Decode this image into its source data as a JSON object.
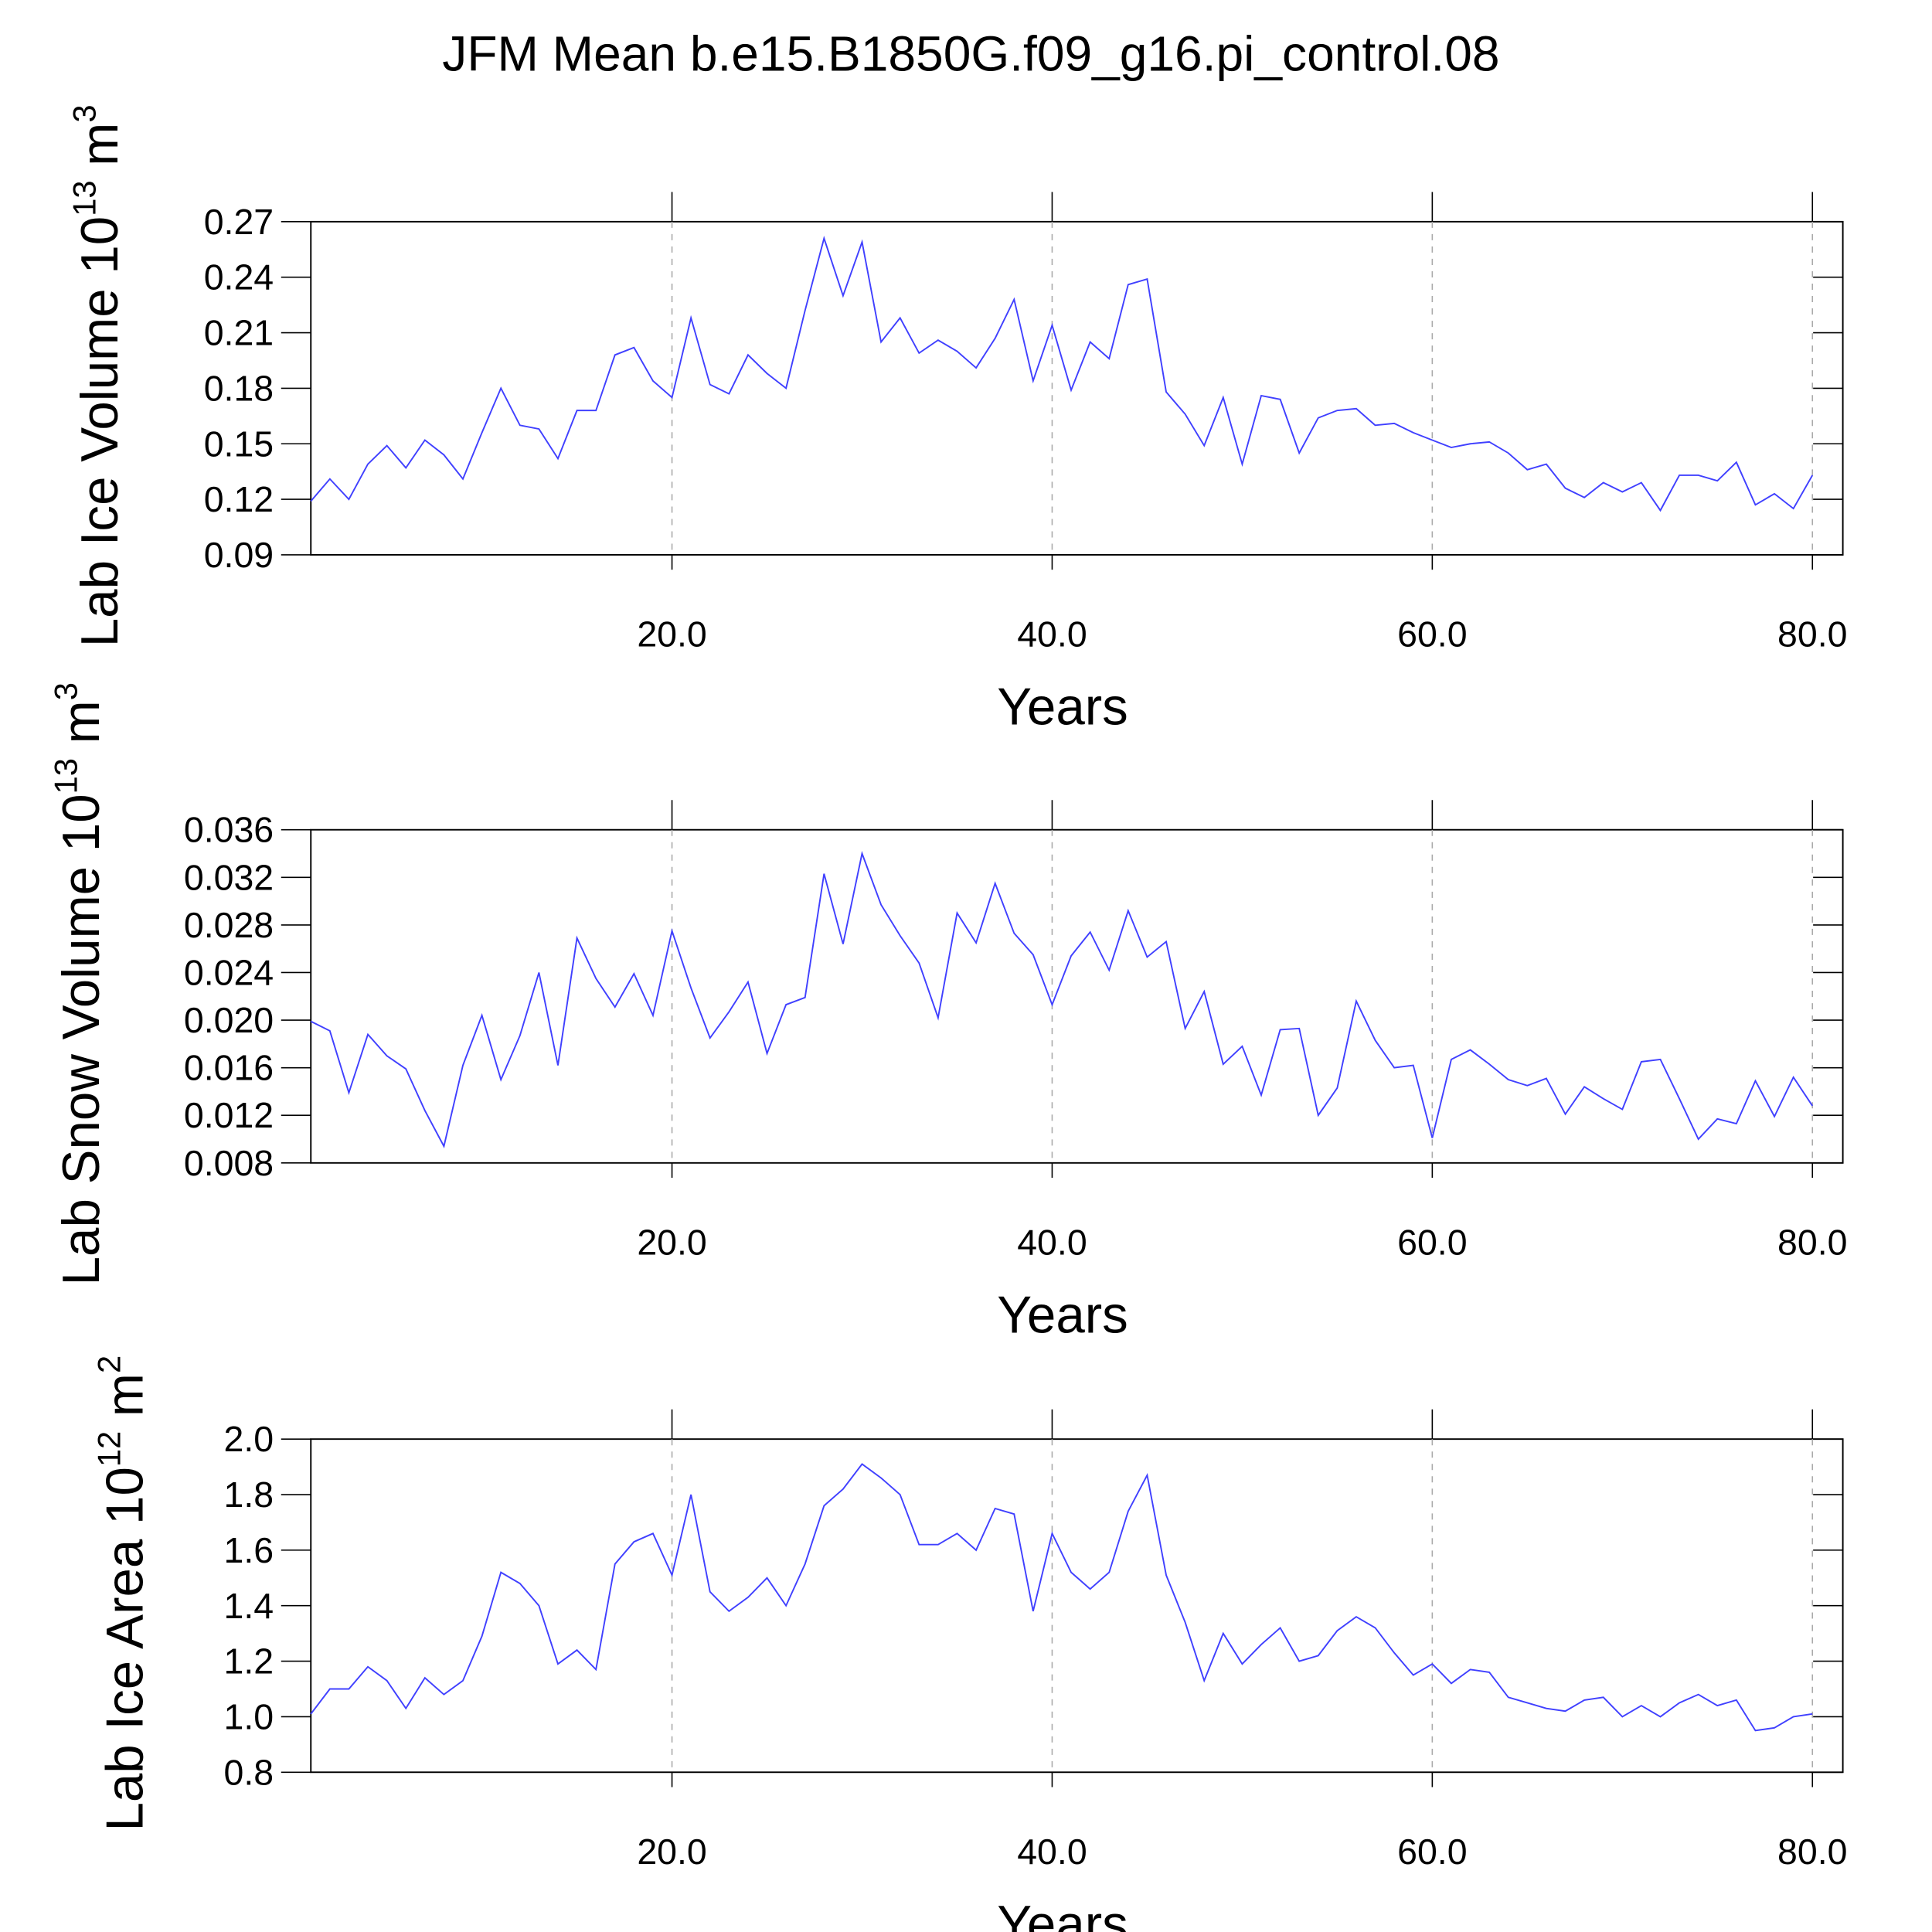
{
  "title": "JFM Mean b.e15.B1850G.f09_g16.pi_control.08",
  "chart_data": [
    {
      "type": "line",
      "xlabel": "Years",
      "ylabel": {
        "text": "Lab Ice Volume 10",
        "exp": "13",
        "unit": " m",
        "unit_exp": "3"
      },
      "color": "#4040ff",
      "xgrid": true,
      "xlim": [
        1,
        81.6
      ],
      "xticks": [
        {
          "value": 20,
          "label": "20.0"
        },
        {
          "value": 40,
          "label": "40.0"
        },
        {
          "value": 60,
          "label": "60.0"
        },
        {
          "value": 80,
          "label": "80.0"
        }
      ],
      "ylim": [
        0.09,
        0.27
      ],
      "yticks": [
        0.09,
        0.12,
        0.15,
        0.18,
        0.21,
        0.24,
        0.27
      ],
      "x": [
        1,
        2,
        3,
        4,
        5,
        6,
        7,
        8,
        9,
        10,
        11,
        12,
        13,
        14,
        15,
        16,
        17,
        18,
        19,
        20,
        21,
        22,
        23,
        24,
        25,
        26,
        27,
        28,
        29,
        30,
        31,
        32,
        33,
        34,
        35,
        36,
        37,
        38,
        39,
        40,
        41,
        42,
        43,
        44,
        45,
        46,
        47,
        48,
        49,
        50,
        51,
        52,
        53,
        54,
        55,
        56,
        57,
        58,
        59,
        60,
        61,
        62,
        63,
        64,
        65,
        66,
        67,
        68,
        69,
        70,
        71,
        72,
        73,
        74,
        75,
        76,
        77,
        78,
        79,
        80
      ],
      "values": [
        0.119,
        0.131,
        0.12,
        0.139,
        0.149,
        0.137,
        0.152,
        0.144,
        0.131,
        0.156,
        0.18,
        0.16,
        0.158,
        0.142,
        0.168,
        0.168,
        0.198,
        0.202,
        0.184,
        0.175,
        0.218,
        0.182,
        0.177,
        0.198,
        0.188,
        0.18,
        0.222,
        0.261,
        0.23,
        0.259,
        0.205,
        0.218,
        0.199,
        0.206,
        0.2,
        0.191,
        0.207,
        0.228,
        0.184,
        0.214,
        0.179,
        0.205,
        0.196,
        0.236,
        0.239,
        0.178,
        0.166,
        0.149,
        0.175,
        0.139,
        0.176,
        0.174,
        0.145,
        0.164,
        0.168,
        0.169,
        0.16,
        0.161,
        0.156,
        0.152,
        0.148,
        0.15,
        0.151,
        0.145,
        0.136,
        0.139,
        0.126,
        0.121,
        0.129,
        0.124,
        0.129,
        0.114,
        0.133,
        0.133,
        0.13,
        0.14,
        0.117,
        0.123,
        0.115,
        0.133
      ]
    },
    {
      "type": "line",
      "xlabel": "Years",
      "ylabel": {
        "text": "Lab Snow Volume 10",
        "exp": "13",
        "unit": " m",
        "unit_exp": "3"
      },
      "color": "#4040ff",
      "xgrid": true,
      "xlim": [
        1,
        81.6
      ],
      "xticks": [
        {
          "value": 20,
          "label": "20.0"
        },
        {
          "value": 40,
          "label": "40.0"
        },
        {
          "value": 60,
          "label": "60.0"
        },
        {
          "value": 80,
          "label": "80.0"
        }
      ],
      "ylim": [
        0.008,
        0.036
      ],
      "yticks": [
        0.008,
        0.012,
        0.016,
        {
          "value": 0.02,
          "label": "0.020"
        },
        0.024,
        0.028,
        0.032,
        0.036
      ],
      "x": [
        1,
        2,
        3,
        4,
        5,
        6,
        7,
        8,
        9,
        10,
        11,
        12,
        13,
        14,
        15,
        16,
        17,
        18,
        19,
        20,
        21,
        22,
        23,
        24,
        25,
        26,
        27,
        28,
        29,
        30,
        31,
        32,
        33,
        34,
        35,
        36,
        37,
        38,
        39,
        40,
        41,
        42,
        43,
        44,
        45,
        46,
        47,
        48,
        49,
        50,
        51,
        52,
        53,
        54,
        55,
        56,
        57,
        58,
        59,
        60,
        61,
        62,
        63,
        64,
        65,
        66,
        67,
        68,
        69,
        70,
        71,
        72,
        73,
        74,
        75,
        76,
        77,
        78,
        79,
        80
      ],
      "values": [
        0.0199,
        0.0191,
        0.0139,
        0.0188,
        0.017,
        0.0159,
        0.0124,
        0.0094,
        0.0162,
        0.0204,
        0.015,
        0.0187,
        0.024,
        0.0162,
        0.0269,
        0.0235,
        0.0211,
        0.0239,
        0.0204,
        0.0275,
        0.0227,
        0.0185,
        0.0207,
        0.0232,
        0.0172,
        0.0213,
        0.0219,
        0.0323,
        0.0264,
        0.034,
        0.0297,
        0.0271,
        0.0248,
        0.0202,
        0.029,
        0.0265,
        0.0315,
        0.0273,
        0.0255,
        0.0213,
        0.0254,
        0.0274,
        0.0242,
        0.0292,
        0.0253,
        0.0266,
        0.0193,
        0.0224,
        0.0163,
        0.0178,
        0.0137,
        0.0192,
        0.0193,
        0.012,
        0.0143,
        0.0216,
        0.0183,
        0.016,
        0.0162,
        0.0101,
        0.0167,
        0.0175,
        0.0163,
        0.015,
        0.0145,
        0.0151,
        0.0121,
        0.0144,
        0.0134,
        0.0125,
        0.0165,
        0.0167,
        0.0134,
        0.01,
        0.0117,
        0.0113,
        0.0149,
        0.0119,
        0.0152,
        0.0128
      ]
    },
    {
      "type": "line",
      "xlabel": "Years",
      "ylabel": {
        "text": "Lab Ice Area 10",
        "exp": "12",
        "unit": " m",
        "unit_exp": "2"
      },
      "color": "#4040ff",
      "xgrid": true,
      "xlim": [
        1,
        81.6
      ],
      "xticks": [
        {
          "value": 20,
          "label": "20.0"
        },
        {
          "value": 40,
          "label": "40.0"
        },
        {
          "value": 60,
          "label": "60.0"
        },
        {
          "value": 80,
          "label": "80.0"
        }
      ],
      "ylim": [
        0.8,
        2.0
      ],
      "yticks": [
        0.8,
        {
          "value": 1.0,
          "label": "1.0"
        },
        1.2,
        1.4,
        1.6,
        1.8,
        {
          "value": 2.0,
          "label": "2.0"
        }
      ],
      "x": [
        1,
        2,
        3,
        4,
        5,
        6,
        7,
        8,
        9,
        10,
        11,
        12,
        13,
        14,
        15,
        16,
        17,
        18,
        19,
        20,
        21,
        22,
        23,
        24,
        25,
        26,
        27,
        28,
        29,
        30,
        31,
        32,
        33,
        34,
        35,
        36,
        37,
        38,
        39,
        40,
        41,
        42,
        43,
        44,
        45,
        46,
        47,
        48,
        49,
        50,
        51,
        52,
        53,
        54,
        55,
        56,
        57,
        58,
        59,
        60,
        61,
        62,
        63,
        64,
        65,
        66,
        67,
        68,
        69,
        70,
        71,
        72,
        73,
        74,
        75,
        76,
        77,
        78,
        79,
        80
      ],
      "values": [
        1.01,
        1.1,
        1.1,
        1.18,
        1.13,
        1.03,
        1.14,
        1.08,
        1.13,
        1.29,
        1.52,
        1.48,
        1.4,
        1.19,
        1.24,
        1.17,
        1.55,
        1.63,
        1.66,
        1.51,
        1.8,
        1.45,
        1.38,
        1.43,
        1.5,
        1.4,
        1.55,
        1.76,
        1.82,
        1.91,
        1.86,
        1.8,
        1.62,
        1.62,
        1.66,
        1.6,
        1.75,
        1.73,
        1.38,
        1.66,
        1.52,
        1.46,
        1.52,
        1.74,
        1.87,
        1.51,
        1.34,
        1.13,
        1.3,
        1.19,
        1.26,
        1.32,
        1.2,
        1.22,
        1.31,
        1.36,
        1.32,
        1.23,
        1.15,
        1.19,
        1.12,
        1.17,
        1.16,
        1.07,
        1.05,
        1.03,
        1.02,
        1.06,
        1.07,
        1.0,
        1.04,
        1.0,
        1.05,
        1.08,
        1.04,
        1.06,
        0.95,
        0.96,
        1.0,
        1.01
      ]
    }
  ]
}
